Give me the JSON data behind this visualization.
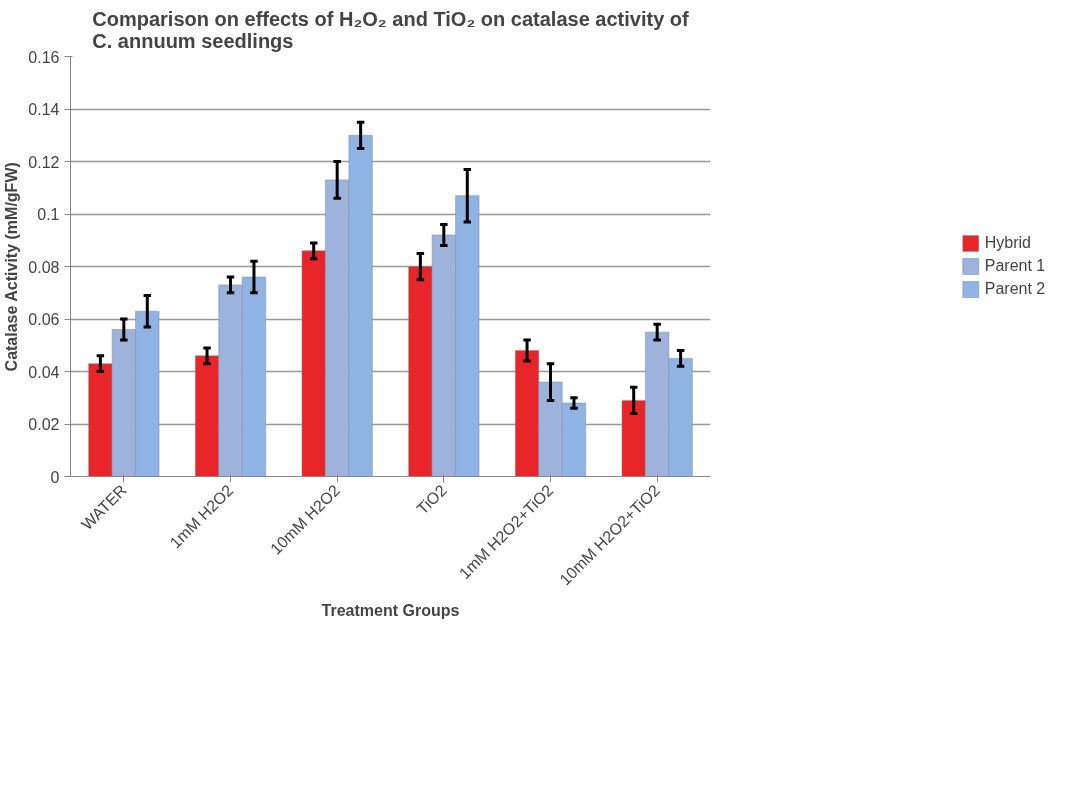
{
  "chart_data": {
    "type": "bar",
    "title": "Comparison on effects of H₂O₂ and TiO₂ on catalase activity of C. annuum seedlings",
    "xlabel": "Treatment Groups",
    "ylabel": "Catalase Activity (mM/gFW)",
    "categories": [
      "WATER",
      "1mM H2O2",
      "10mM H2O2",
      "TiO2",
      "1mM H2O2+TiO2",
      "10mM H2O2+TiO2"
    ],
    "series": [
      {
        "name": "Hybrid",
        "color": "#e8262a",
        "values": [
          0.043,
          0.046,
          0.086,
          0.08,
          0.048,
          0.029
        ],
        "errors": [
          0.003,
          0.003,
          0.003,
          0.005,
          0.004,
          0.005
        ]
      },
      {
        "name": "Parent 1",
        "color": "#9db3db",
        "values": [
          0.056,
          0.073,
          0.113,
          0.092,
          0.036,
          0.055
        ],
        "errors": [
          0.004,
          0.003,
          0.007,
          0.004,
          0.007,
          0.003
        ]
      },
      {
        "name": "Parent 2",
        "color": "#8fb4e3",
        "values": [
          0.063,
          0.076,
          0.13,
          0.107,
          0.028,
          0.045
        ],
        "errors": [
          0.006,
          0.006,
          0.005,
          0.01,
          0.002,
          0.003
        ]
      }
    ],
    "ylim": [
      0,
      0.16
    ],
    "yticks": [
      0,
      0.02,
      0.04,
      0.06,
      0.08,
      0.1,
      0.12,
      0.14,
      0.16
    ],
    "grid": "y",
    "legend": "right"
  }
}
